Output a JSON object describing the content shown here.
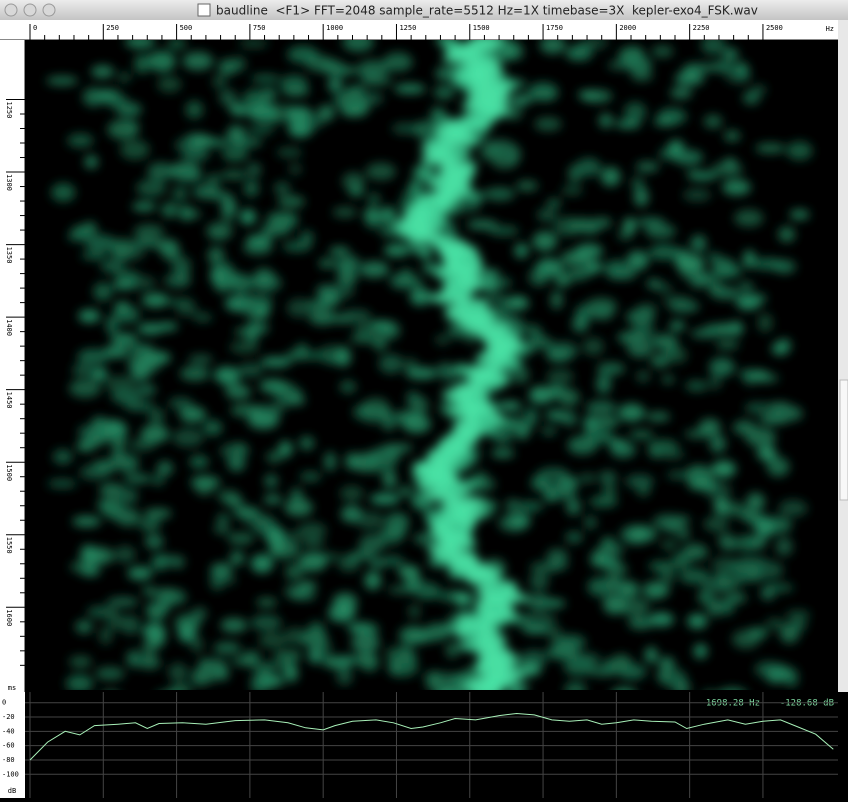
{
  "window": {
    "title": "baudline  <F1> FFT=2048 sample_rate=5512 Hz=1X timebase=3X  kepler-exo4_FSK.wav"
  },
  "spectrogram": {
    "frequency_axis": {
      "unit": "Hz",
      "xlim": [
        0,
        2756
      ],
      "xticks": [
        0,
        250,
        500,
        750,
        1000,
        1250,
        1500,
        1750,
        2000,
        2250,
        2500
      ]
    },
    "time_axis": {
      "unit": "ms",
      "ylim": [
        1209,
        1657
      ],
      "yticks": [
        1250,
        1300,
        1350,
        1400,
        1450,
        1500,
        1550,
        1600
      ]
    }
  },
  "chart_data": {
    "type": "line",
    "xlim": [
      0,
      2756
    ],
    "xticks": [
      0,
      250,
      500,
      750,
      1000,
      1250,
      1500,
      1750,
      2000,
      2250,
      2500
    ],
    "ylim": [
      -122,
      8
    ],
    "yticks": [
      0,
      -20,
      -40,
      -60,
      -80,
      -100
    ],
    "y_unit": "dB",
    "grid": true,
    "color": "#a8f0b8",
    "x": [
      0,
      60,
      120,
      170,
      220,
      300,
      360,
      400,
      440,
      520,
      600,
      700,
      800,
      880,
      940,
      1000,
      1040,
      1100,
      1180,
      1240,
      1300,
      1340,
      1400,
      1450,
      1520,
      1600,
      1660,
      1720,
      1780,
      1840,
      1900,
      1950,
      2000,
      2060,
      2120,
      2200,
      2240,
      2300,
      2380,
      2440,
      2500,
      2560,
      2620,
      2680,
      2740
    ],
    "values": [
      -80,
      -55,
      -40,
      -45,
      -32,
      -30,
      -28,
      -36,
      -29,
      -28,
      -30,
      -25,
      -24,
      -28,
      -35,
      -38,
      -32,
      -26,
      -24,
      -28,
      -36,
      -34,
      -28,
      -22,
      -24,
      -18,
      -15,
      -17,
      -24,
      -26,
      -24,
      -30,
      -28,
      -24,
      -26,
      -27,
      -36,
      -30,
      -24,
      -30,
      -26,
      -24,
      -34,
      -44,
      -65
    ],
    "readout": {
      "frequency": "1698.28 Hz",
      "level": "-128.68 dB"
    }
  }
}
